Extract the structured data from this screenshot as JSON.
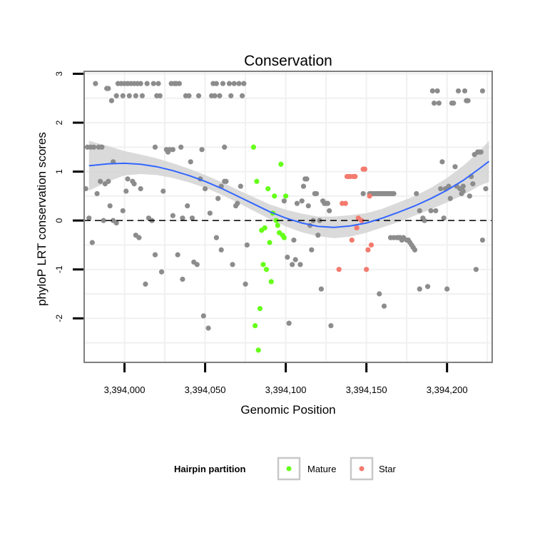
{
  "chart_data": {
    "type": "scatter",
    "title": "Conservation",
    "xlabel": "Genomic Position",
    "ylabel": "phyloP LRT conservation scores",
    "xlim": [
      3393975,
      3394228
    ],
    "ylim": [
      -2.9,
      3.05
    ],
    "x_ticks": [
      {
        "value": 3394000,
        "label": "3,394,000"
      },
      {
        "value": 3394050,
        "label": "3,394,050"
      },
      {
        "value": 3394100,
        "label": "3,394,100"
      },
      {
        "value": 3394150,
        "label": "3,394,150"
      },
      {
        "value": 3394200,
        "label": "3,394,200"
      }
    ],
    "y_ticks": [
      {
        "value": -2,
        "label": "-2"
      },
      {
        "value": -1,
        "label": "-1"
      },
      {
        "value": 0,
        "label": "0"
      },
      {
        "value": 1,
        "label": "1"
      },
      {
        "value": 2,
        "label": "2"
      },
      {
        "value": 3,
        "label": "3"
      }
    ],
    "reference_line": {
      "y": 0,
      "style": "dashed"
    },
    "grid": true,
    "legend": {
      "title": "Hairpin partition",
      "position": "bottom",
      "entries": [
        {
          "label": "Mature",
          "color": "#66ff1a"
        },
        {
          "label": "Star",
          "color": "#f47a6e"
        }
      ]
    },
    "colors": {
      "other": "#8c8c8c",
      "Mature": "#66ff1a",
      "Star": "#f47a6e",
      "smooth": "#3366ff",
      "ribbon": "#d3d3d3"
    },
    "smooth": {
      "x": [
        3393978,
        3393990,
        3394000,
        3394010,
        3394020,
        3394030,
        3394040,
        3394050,
        3394060,
        3394070,
        3394080,
        3394090,
        3394100,
        3394110,
        3394120,
        3394130,
        3394140,
        3394150,
        3394160,
        3394170,
        3394180,
        3394190,
        3394200,
        3394210,
        3394220,
        3394226
      ],
      "y": [
        1.12,
        1.16,
        1.17,
        1.15,
        1.1,
        1.02,
        0.92,
        0.8,
        0.66,
        0.5,
        0.34,
        0.18,
        0.05,
        -0.05,
        -0.12,
        -0.14,
        -0.11,
        -0.05,
        0.05,
        0.17,
        0.3,
        0.45,
        0.62,
        0.82,
        1.06,
        1.21
      ],
      "lower": [
        0.61,
        0.8,
        0.92,
        0.95,
        0.93,
        0.87,
        0.78,
        0.67,
        0.53,
        0.37,
        0.2,
        0.03,
        -0.12,
        -0.24,
        -0.32,
        -0.36,
        -0.33,
        -0.25,
        -0.14,
        -0.03,
        0.1,
        0.23,
        0.37,
        0.52,
        0.71,
        0.79
      ],
      "upper": [
        1.63,
        1.52,
        1.42,
        1.35,
        1.27,
        1.17,
        1.06,
        0.93,
        0.79,
        0.63,
        0.48,
        0.33,
        0.22,
        0.14,
        0.08,
        0.08,
        0.11,
        0.15,
        0.24,
        0.37,
        0.5,
        0.67,
        0.87,
        1.12,
        1.41,
        1.63
      ]
    },
    "series": [
      {
        "name": "Other",
        "points": [
          [
            3393977,
            1.5
          ],
          [
            3393979,
            1.5
          ],
          [
            3393981,
            1.5
          ],
          [
            3393984,
            1.5
          ],
          [
            3393986,
            1.5
          ],
          [
            3393976,
            0.65
          ],
          [
            3393978,
            0.05
          ],
          [
            3393980,
            -0.45
          ],
          [
            3393982,
            2.8
          ],
          [
            3393983,
            0.55
          ],
          [
            3393985,
            0.8
          ],
          [
            3393987,
            0
          ],
          [
            3393988,
            0.75
          ],
          [
            3393989,
            2.7
          ],
          [
            3393990,
            2.7
          ],
          [
            3393990,
            0.8
          ],
          [
            3393991,
            0.3
          ],
          [
            3393992,
            2.45
          ],
          [
            3393993,
            1.2
          ],
          [
            3393993,
            0
          ],
          [
            3393995,
            2.55
          ],
          [
            3393995,
            -0.05
          ],
          [
            3393996,
            2.8
          ],
          [
            3393998,
            2.8
          ],
          [
            3393999,
            2.55
          ],
          [
            3393999,
            0.2
          ],
          [
            3394000,
            2.8
          ],
          [
            3394001,
            0.6
          ],
          [
            3394002,
            2.8
          ],
          [
            3394002,
            0.85
          ],
          [
            3394003,
            2.55
          ],
          [
            3394004,
            2.8
          ],
          [
            3394005,
            0.8
          ],
          [
            3394006,
            2.8
          ],
          [
            3394006,
            0.75
          ],
          [
            3394007,
            2.55
          ],
          [
            3394007,
            -0.3
          ],
          [
            3394008,
            2.8
          ],
          [
            3394009,
            -0.35
          ],
          [
            3394010,
            0.65
          ],
          [
            3394010,
            2.8
          ],
          [
            3394011,
            2.55
          ],
          [
            3394013,
            -1.3
          ],
          [
            3394014,
            2.8
          ],
          [
            3394015,
            0.05
          ],
          [
            3394017,
            0
          ],
          [
            3394018,
            2.8
          ],
          [
            3394019,
            1.5
          ],
          [
            3394019,
            -0.7
          ],
          [
            3394020,
            2.55
          ],
          [
            3394021,
            2.8
          ],
          [
            3394022,
            2.55
          ],
          [
            3394023,
            -1.05
          ],
          [
            3394024,
            0.6
          ],
          [
            3394026,
            1.45
          ],
          [
            3394027,
            1.4
          ],
          [
            3394028,
            1.45
          ],
          [
            3394029,
            2.8
          ],
          [
            3394030,
            1.45
          ],
          [
            3394030,
            0.1
          ],
          [
            3394031,
            2.8
          ],
          [
            3394032,
            2.8
          ],
          [
            3394033,
            -0.7
          ],
          [
            3394034,
            2.8
          ],
          [
            3394035,
            1.5
          ],
          [
            3394036,
            0.05
          ],
          [
            3394036,
            -1.2
          ],
          [
            3394038,
            2.55
          ],
          [
            3394039,
            0.3
          ],
          [
            3394040,
            2.55
          ],
          [
            3394041,
            1.2
          ],
          [
            3394042,
            0.05
          ],
          [
            3394043,
            -0.85
          ],
          [
            3394045,
            -0.9
          ],
          [
            3394046,
            2.55
          ],
          [
            3394047,
            0.85
          ],
          [
            3394048,
            1.45
          ],
          [
            3394049,
            -1.95
          ],
          [
            3394050,
            0.65
          ],
          [
            3394052,
            -2.2
          ],
          [
            3394053,
            0.15
          ],
          [
            3394054,
            2.55
          ],
          [
            3394055,
            2.8
          ],
          [
            3394056,
            2.55
          ],
          [
            3394057,
            -0.35
          ],
          [
            3394057,
            2.8
          ],
          [
            3394058,
            0.45
          ],
          [
            3394059,
            2.55
          ],
          [
            3394060,
            -0.6
          ],
          [
            3394060,
            0.7
          ],
          [
            3394061,
            2.8
          ],
          [
            3394062,
            1.5
          ],
          [
            3394062,
            0.8
          ],
          [
            3394063,
            0.8
          ],
          [
            3394065,
            2.8
          ],
          [
            3394066,
            2.55
          ],
          [
            3394067,
            -0.9
          ],
          [
            3394068,
            2.8
          ],
          [
            3394069,
            0.3
          ],
          [
            3394070,
            0.35
          ],
          [
            3394071,
            2.8
          ],
          [
            3394072,
            0.7
          ],
          [
            3394073,
            2.55
          ],
          [
            3394074,
            2.8
          ],
          [
            3394075,
            -1.3
          ],
          [
            3394076,
            -0.5
          ],
          [
            3394099,
            0.4
          ],
          [
            3394101,
            -0.75
          ],
          [
            3394102,
            -2.1
          ],
          [
            3394104,
            -0.9
          ],
          [
            3394105,
            -0.4
          ],
          [
            3394106,
            -0.8
          ],
          [
            3394107,
            0.35
          ],
          [
            3394109,
            -0.9
          ],
          [
            3394110,
            0.4
          ],
          [
            3394111,
            0.7
          ],
          [
            3394112,
            0.85
          ],
          [
            3394113,
            0.85
          ],
          [
            3394114,
            0.3
          ],
          [
            3394115,
            -0.1
          ],
          [
            3394116,
            -0.6
          ],
          [
            3394117,
            0
          ],
          [
            3394118,
            0.55
          ],
          [
            3394119,
            0.55
          ],
          [
            3394120,
            -0.3
          ],
          [
            3394121,
            0
          ],
          [
            3394122,
            -1.4
          ],
          [
            3394123,
            0.4
          ],
          [
            3394124,
            0.35
          ],
          [
            3394125,
            0.35
          ],
          [
            3394126,
            0.35
          ],
          [
            3394127,
            0.2
          ],
          [
            3394128,
            -2.15
          ],
          [
            3394148,
            0.55
          ],
          [
            3394152,
            0.55
          ],
          [
            3394153,
            0.55
          ],
          [
            3394154,
            0.55
          ],
          [
            3394155,
            0.55
          ],
          [
            3394156,
            0.55
          ],
          [
            3394157,
            0.55
          ],
          [
            3394158,
            0.55
          ],
          [
            3394159,
            0.55
          ],
          [
            3394160,
            0.55
          ],
          [
            3394161,
            0.55
          ],
          [
            3394162,
            0.55
          ],
          [
            3394163,
            0.55
          ],
          [
            3394164,
            0.55
          ],
          [
            3394165,
            0.55
          ],
          [
            3394166,
            0.55
          ],
          [
            3394167,
            0.55
          ],
          [
            3394158,
            -1.5
          ],
          [
            3394161,
            -1.75
          ],
          [
            3394165,
            -0.35
          ],
          [
            3394167,
            -0.35
          ],
          [
            3394169,
            -0.35
          ],
          [
            3394170,
            -0.35
          ],
          [
            3394171,
            -0.35
          ],
          [
            3394172,
            -0.4
          ],
          [
            3394173,
            -0.35
          ],
          [
            3394175,
            -0.4
          ],
          [
            3394176,
            -0.4
          ],
          [
            3394177,
            -0.45
          ],
          [
            3394178,
            -0.5
          ],
          [
            3394179,
            -0.55
          ],
          [
            3394180,
            -0.6
          ],
          [
            3394181,
            0.55
          ],
          [
            3394183,
            0.2
          ],
          [
            3394183,
            -1.4
          ],
          [
            3394185,
            0.05
          ],
          [
            3394186,
            0
          ],
          [
            3394188,
            -1.35
          ],
          [
            3394190,
            0.2
          ],
          [
            3394191,
            2.65
          ],
          [
            3394192,
            2.4
          ],
          [
            3394193,
            0.2
          ],
          [
            3394194,
            2.65
          ],
          [
            3394195,
            2.4
          ],
          [
            3394196,
            0.65
          ],
          [
            3394197,
            1.2
          ],
          [
            3394198,
            0.05
          ],
          [
            3394199,
            0.65
          ],
          [
            3394200,
            -1.4
          ],
          [
            3394202,
            0.45
          ],
          [
            3394203,
            2.4
          ],
          [
            3394204,
            2.4
          ],
          [
            3394205,
            1.1
          ],
          [
            3394206,
            0.7
          ],
          [
            3394207,
            2.65
          ],
          [
            3394208,
            0.65
          ],
          [
            3394209,
            0.55
          ],
          [
            3394210,
            0.6
          ],
          [
            3394211,
            2.65
          ],
          [
            3394212,
            2.45
          ],
          [
            3394213,
            2.45
          ],
          [
            3394215,
            0.9
          ],
          [
            3394217,
            1.35
          ],
          [
            3394218,
            -1.0
          ],
          [
            3394219,
            1.4
          ],
          [
            3394220,
            1.4
          ],
          [
            3394221,
            1.4
          ],
          [
            3394222,
            -0.4
          ],
          [
            3394224,
            0.65
          ],
          [
            3394222,
            2.65
          ],
          [
            3394216,
            0.75
          ],
          [
            3394214,
            0.5
          ],
          [
            3394210,
            0.7
          ],
          [
            3394201,
            0.7
          ]
        ]
      },
      {
        "name": "Mature",
        "points": [
          [
            3394080,
            1.5
          ],
          [
            3394081,
            -2.15
          ],
          [
            3394082,
            0.8
          ],
          [
            3394083,
            -2.65
          ],
          [
            3394084,
            -1.8
          ],
          [
            3394085,
            -0.2
          ],
          [
            3394086,
            -0.9
          ],
          [
            3394087,
            -0.15
          ],
          [
            3394088,
            -1.0
          ],
          [
            3394089,
            0.65
          ],
          [
            3394090,
            -0.45
          ],
          [
            3394091,
            -1.25
          ],
          [
            3394092,
            0.15
          ],
          [
            3394093,
            0.5
          ],
          [
            3394094,
            0
          ],
          [
            3394095,
            -0.1
          ],
          [
            3394096,
            -0.25
          ],
          [
            3394097,
            1.15
          ],
          [
            3394098,
            -0.3
          ],
          [
            3394099,
            -0.35
          ],
          [
            3394100,
            0.5
          ]
        ]
      },
      {
        "name": "Star",
        "points": [
          [
            3394133,
            -1.0
          ],
          [
            3394135,
            0.35
          ],
          [
            3394137,
            0.35
          ],
          [
            3394138,
            0.9
          ],
          [
            3394139,
            0.9
          ],
          [
            3394140,
            0.9
          ],
          [
            3394141,
            -0.4
          ],
          [
            3394142,
            0.9
          ],
          [
            3394143,
            0.9
          ],
          [
            3394144,
            -0.15
          ],
          [
            3394145,
            0.05
          ],
          [
            3394147,
            0
          ],
          [
            3394148,
            1.05
          ],
          [
            3394149,
            1.05
          ],
          [
            3394150,
            -1.0
          ],
          [
            3394151,
            -0.6
          ],
          [
            3394152,
            0.5
          ],
          [
            3394153,
            -0.5
          ]
        ]
      }
    ]
  }
}
